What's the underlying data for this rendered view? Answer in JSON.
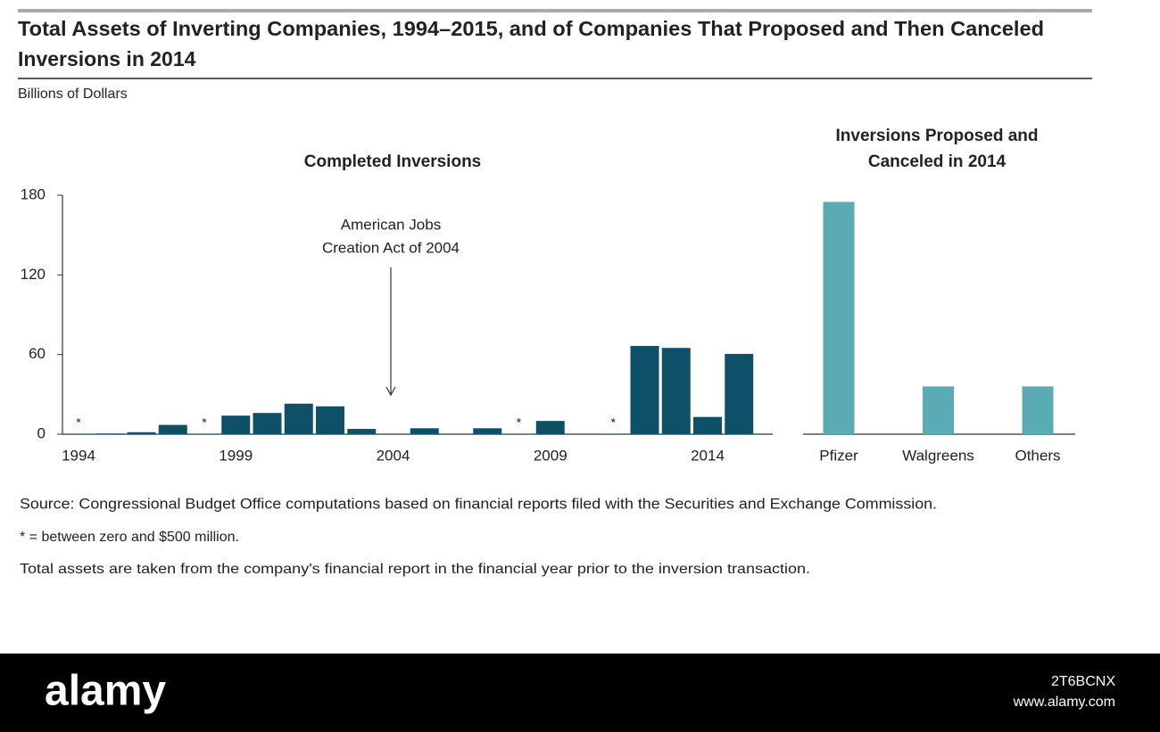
{
  "title": [
    "Total Assets of Inverting Companies, 1994–2015, and of Companies That Proposed and Then Canceled",
    "Inversions in 2014"
  ],
  "units": "Billions of Dollars",
  "chart_data": [
    {
      "type": "bar",
      "subtitle": [
        "Completed Inversions"
      ],
      "categories": [
        "1994",
        null,
        null,
        null,
        null,
        "1999",
        null,
        null,
        null,
        null,
        "2004",
        null,
        null,
        null,
        null,
        "2009",
        null,
        null,
        null,
        null,
        "2014",
        null
      ],
      "values": [
        0.3,
        0.5,
        1.5,
        7,
        0.3,
        14,
        16,
        23,
        21,
        4,
        0,
        4.5,
        0,
        4.5,
        0.3,
        10,
        0,
        0.3,
        66.5,
        65,
        13,
        60.5
      ],
      "value_labels": [
        "*",
        null,
        null,
        null,
        "*",
        null,
        null,
        null,
        null,
        null,
        null,
        null,
        null,
        null,
        "*",
        null,
        null,
        "*",
        null,
        null,
        null,
        null
      ],
      "color": "#0e5068",
      "ylim": [
        0,
        180
      ],
      "yticks": [
        0,
        60,
        120,
        180
      ],
      "annotation": [
        "American Jobs",
        "Creation Act of 2004"
      ]
    },
    {
      "type": "bar",
      "subtitle": [
        "Inversions Proposed and",
        "Canceled in 2014"
      ],
      "categories": [
        "Pfizer",
        "Walgreens",
        "Others"
      ],
      "values": [
        175,
        36,
        36
      ],
      "color": "#5aabb3",
      "ylim": [
        0,
        180
      ]
    }
  ],
  "notes": [
    "Source: Congressional Budget Office computations based on financial reports filed with the Securities and Exchange Commission.",
    "* = between zero and $500 million.",
    "Total assets are taken from the company's financial report in the financial year prior to the inversion transaction."
  ],
  "watermark": {
    "brand": "alamy",
    "id": "2T6BCNX",
    "site": "www.alamy.com"
  }
}
